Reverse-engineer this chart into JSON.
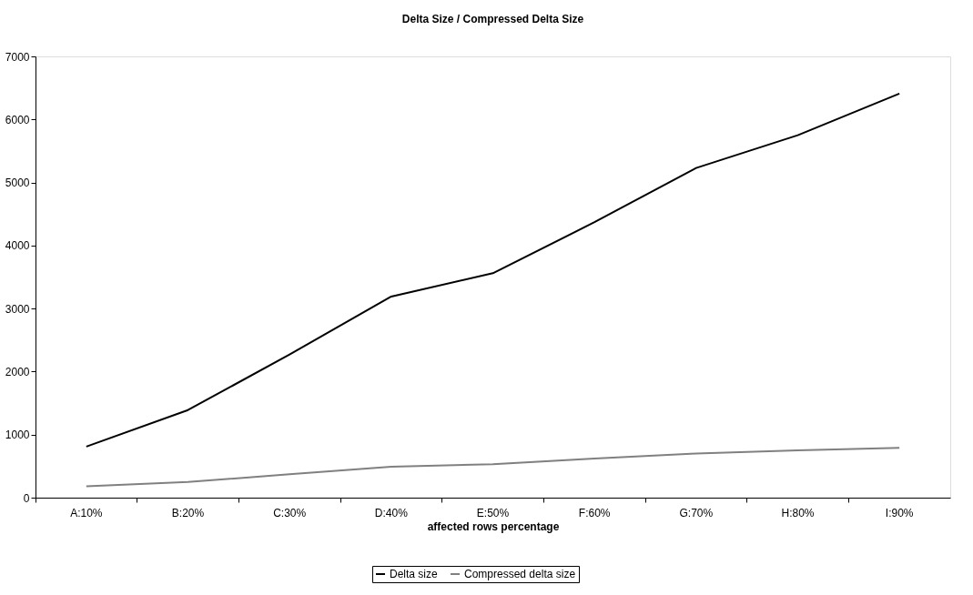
{
  "chart_data": {
    "type": "line",
    "title": "Delta Size / Compressed Delta Size",
    "xlabel": "affected rows percentage",
    "categories": [
      "A:10%",
      "B:20%",
      "C:30%",
      "D:40%",
      "E:50%",
      "F:60%",
      "G:70%",
      "H:80%",
      "I:90%"
    ],
    "series": [
      {
        "name": "Delta size",
        "color": "#000000",
        "values": [
          810,
          1390,
          2270,
          3190,
          3560,
          4370,
          5230,
          5750,
          6410
        ]
      },
      {
        "name": "Compressed delta size",
        "color": "#808080",
        "values": [
          180,
          250,
          370,
          490,
          530,
          620,
          700,
          750,
          790
        ]
      }
    ],
    "ylim": [
      0,
      7000
    ],
    "yticks": [
      0,
      1000,
      2000,
      3000,
      4000,
      5000,
      6000,
      7000
    ],
    "grid": false,
    "legend": "bottom",
    "marker": "none",
    "line_style": "solid"
  }
}
